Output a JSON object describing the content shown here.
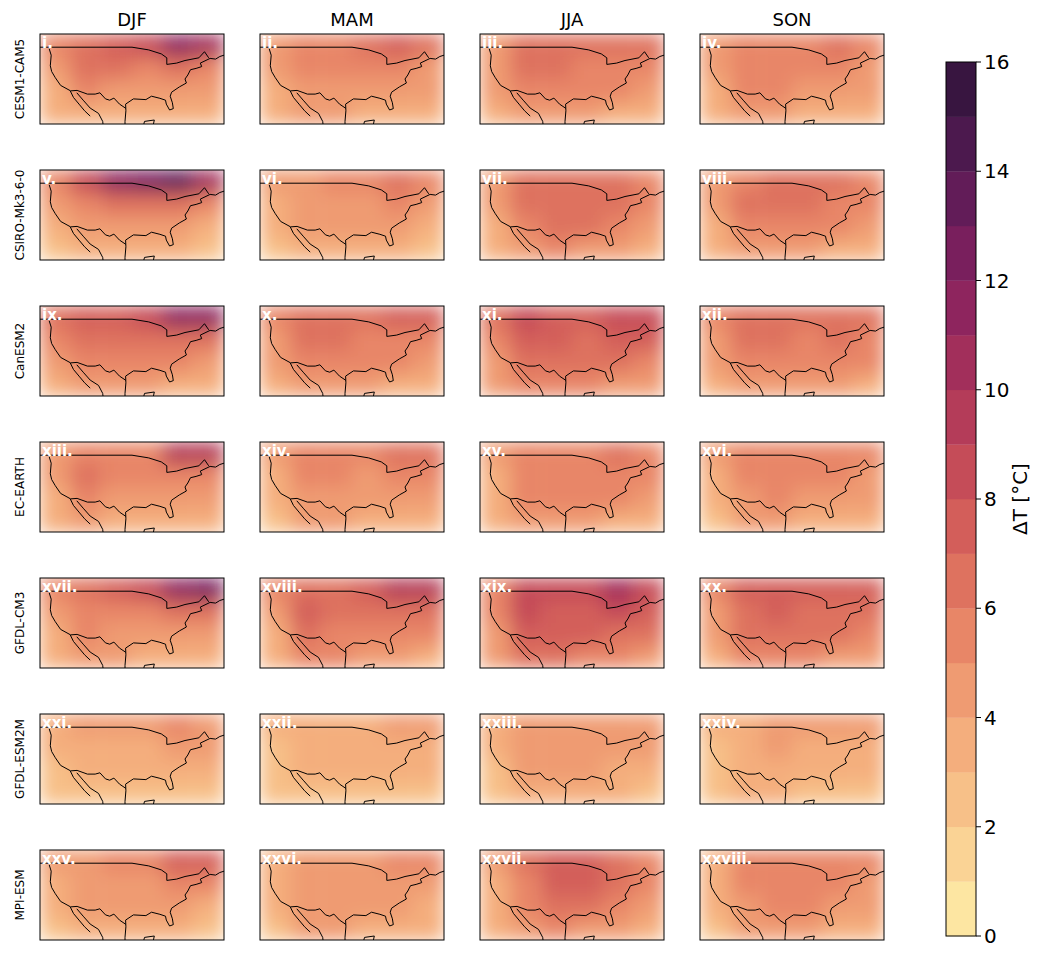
{
  "chart_data": {
    "type": "filled_contour_map_grid",
    "columns": [
      "DJF",
      "MAM",
      "JJA",
      "SON"
    ],
    "rows": [
      "CESM1-CAM5",
      "CSIRO-Mk3-6-0",
      "CanESM2",
      "EC-EARTH",
      "GFDL-CM3",
      "GFDL-ESM2M",
      "MPI-ESM"
    ],
    "panels": [
      {
        "label": "i.",
        "cells": [
          [
            5,
            6,
            7,
            8,
            11,
            10
          ],
          [
            4,
            6,
            6,
            5,
            6,
            5
          ],
          [
            3.5,
            5,
            4.5,
            4.5,
            4.5,
            4
          ],
          [
            3,
            3.5,
            3.5,
            3,
            3,
            3
          ]
        ]
      },
      {
        "label": "ii.",
        "cells": [
          [
            4,
            5,
            5,
            6,
            7,
            6
          ],
          [
            4,
            5,
            5,
            5,
            5,
            4.5
          ],
          [
            3.5,
            4.5,
            4.5,
            4.5,
            4.5,
            4
          ],
          [
            3,
            4,
            4,
            3.5,
            3,
            3
          ]
        ]
      },
      {
        "label": "iii.",
        "cells": [
          [
            4.5,
            6,
            6.5,
            6,
            6.5,
            6
          ],
          [
            4,
            6,
            6,
            5.5,
            5.5,
            5
          ],
          [
            4,
            5.5,
            5.5,
            5,
            5,
            4.5
          ],
          [
            3.5,
            4.5,
            4.5,
            4,
            3.5,
            3.5
          ]
        ]
      },
      {
        "label": "iv.",
        "cells": [
          [
            4.5,
            5.5,
            5.5,
            5.5,
            6,
            5.5
          ],
          [
            4,
            5,
            5,
            5,
            5,
            4.5
          ],
          [
            3.5,
            5,
            5,
            4.5,
            4.5,
            4
          ],
          [
            3,
            4,
            4,
            3.5,
            3.5,
            3
          ]
        ]
      },
      {
        "label": "v.",
        "cells": [
          [
            5,
            8,
            11,
            12,
            13,
            10
          ],
          [
            4,
            5,
            6,
            6,
            6,
            5
          ],
          [
            3,
            4,
            4,
            4,
            4,
            3.5
          ],
          [
            2.5,
            3,
            3,
            3,
            3,
            2.5
          ]
        ]
      },
      {
        "label": "vi.",
        "cells": [
          [
            4,
            4.5,
            5,
            5,
            6,
            5.5
          ],
          [
            3.5,
            4.5,
            4.5,
            4.5,
            5,
            4.5
          ],
          [
            3,
            4,
            4,
            4,
            4,
            3.5
          ],
          [
            2.5,
            3.5,
            3.5,
            3,
            3,
            2.5
          ]
        ]
      },
      {
        "label": "vii.",
        "cells": [
          [
            4.5,
            6.5,
            6.5,
            6.5,
            6,
            5.5
          ],
          [
            4,
            6.5,
            6.5,
            6.5,
            6,
            5
          ],
          [
            3.5,
            5.5,
            6,
            6,
            5.5,
            4.5
          ],
          [
            3,
            4.5,
            5,
            4.5,
            4,
            3.5
          ]
        ]
      },
      {
        "label": "viii.",
        "cells": [
          [
            4.5,
            5.5,
            6,
            6,
            6,
            5.5
          ],
          [
            4,
            6,
            6,
            6,
            5.5,
            5
          ],
          [
            3.5,
            5.5,
            5.5,
            5.5,
            5,
            4.5
          ],
          [
            3,
            4.5,
            4.5,
            4,
            3.5,
            3
          ]
        ]
      },
      {
        "label": "ix.",
        "cells": [
          [
            6,
            7,
            7.5,
            8,
            11,
            11
          ],
          [
            5,
            6.5,
            6,
            6,
            6,
            6
          ],
          [
            4,
            5.5,
            5,
            5,
            5,
            4.5
          ],
          [
            3.5,
            4.5,
            4.5,
            4,
            3.5,
            3.5
          ]
        ]
      },
      {
        "label": "x.",
        "cells": [
          [
            5,
            6,
            6,
            6,
            7,
            7
          ],
          [
            4.5,
            6,
            6,
            5.5,
            5.5,
            5.5
          ],
          [
            4,
            5.5,
            5,
            5,
            5,
            4.5
          ],
          [
            3.5,
            4.5,
            4.5,
            4,
            3.5,
            3.5
          ]
        ]
      },
      {
        "label": "xi.",
        "cells": [
          [
            6,
            8.5,
            7.5,
            7.5,
            8.5,
            8.5
          ],
          [
            5,
            7.5,
            7,
            6.5,
            7,
            7
          ],
          [
            4.5,
            6.5,
            6.5,
            6,
            6,
            5.5
          ],
          [
            4,
            5.5,
            5.5,
            5,
            4.5,
            4
          ]
        ]
      },
      {
        "label": "xii.",
        "cells": [
          [
            5.5,
            6.5,
            6,
            6,
            6.5,
            6.5
          ],
          [
            4.5,
            6,
            6,
            5.5,
            6,
            5.5
          ],
          [
            4,
            5.5,
            5.5,
            5,
            5,
            5
          ],
          [
            3.5,
            4.5,
            4.5,
            4,
            4,
            3.5
          ]
        ]
      },
      {
        "label": "xiii.",
        "cells": [
          [
            4.5,
            5,
            5,
            5.5,
            9,
            9
          ],
          [
            4,
            6.5,
            5,
            5,
            5,
            5
          ],
          [
            3.5,
            5,
            4.5,
            4.5,
            4.5,
            4
          ],
          [
            3,
            4,
            3.5,
            3.5,
            3,
            3
          ]
        ]
      },
      {
        "label": "xiv.",
        "cells": [
          [
            4,
            5,
            5,
            5,
            6,
            6
          ],
          [
            3.5,
            5.5,
            5,
            4.5,
            5,
            5
          ],
          [
            3,
            4.5,
            4.5,
            4.5,
            4.5,
            4
          ],
          [
            2.5,
            4,
            4,
            3.5,
            3,
            3
          ]
        ]
      },
      {
        "label": "xv.",
        "cells": [
          [
            4,
            5.5,
            5.5,
            5.5,
            6,
            5.5
          ],
          [
            3.5,
            5.5,
            5.5,
            5.5,
            5.5,
            5
          ],
          [
            3.5,
            5,
            5.5,
            5,
            5,
            4.5
          ],
          [
            3,
            4.5,
            4.5,
            4,
            3.5,
            3.5
          ]
        ]
      },
      {
        "label": "xvi.",
        "cells": [
          [
            4,
            5,
            5,
            5,
            5.5,
            5.5
          ],
          [
            3.5,
            5,
            5,
            5,
            5,
            4.5
          ],
          [
            3,
            4.5,
            5,
            4.5,
            4.5,
            4
          ],
          [
            2.5,
            4,
            4,
            3.5,
            3.5,
            3
          ]
        ]
      },
      {
        "label": "xvii.",
        "cells": [
          [
            5,
            6,
            7,
            8,
            11,
            12
          ],
          [
            4,
            5.5,
            5.5,
            5.5,
            6,
            6
          ],
          [
            3.5,
            5,
            4.5,
            4.5,
            4.5,
            4
          ],
          [
            3,
            4,
            4,
            3.5,
            3,
            3
          ]
        ]
      },
      {
        "label": "xviii.",
        "cells": [
          [
            5,
            6.5,
            6.5,
            7,
            9,
            9
          ],
          [
            4,
            7,
            6,
            6,
            6.5,
            6.5
          ],
          [
            3.5,
            6,
            5.5,
            5.5,
            5,
            5
          ],
          [
            3,
            5,
            5,
            4.5,
            4,
            3.5
          ]
        ]
      },
      {
        "label": "xix.",
        "cells": [
          [
            5.5,
            8,
            8,
            8.5,
            10,
            8
          ],
          [
            5,
            8,
            7.5,
            7.5,
            8,
            7
          ],
          [
            4.5,
            7,
            7,
            7,
            6.5,
            6
          ],
          [
            4,
            6,
            6,
            5.5,
            5,
            4.5
          ]
        ]
      },
      {
        "label": "xx.",
        "cells": [
          [
            5,
            7,
            7,
            7,
            7,
            7
          ],
          [
            4.5,
            6.5,
            7,
            6.5,
            6.5,
            6.5
          ],
          [
            4,
            6,
            6.5,
            6.5,
            6,
            5.5
          ],
          [
            3.5,
            5,
            5.5,
            5,
            4.5,
            4
          ]
        ]
      },
      {
        "label": "xxi.",
        "cells": [
          [
            3.5,
            4,
            4,
            4.5,
            5,
            4.5
          ],
          [
            3,
            3.5,
            3.5,
            3.5,
            4,
            4
          ],
          [
            2.5,
            3,
            3,
            3,
            3,
            3
          ],
          [
            2,
            2.5,
            2.5,
            2.5,
            2.5,
            2
          ]
        ]
      },
      {
        "label": "xxii.",
        "cells": [
          [
            3,
            3.5,
            3.5,
            3.5,
            4,
            4
          ],
          [
            2.5,
            3.5,
            3.5,
            3.5,
            3.5,
            3.5
          ],
          [
            2.5,
            3,
            3,
            3,
            3,
            3
          ],
          [
            2,
            2.5,
            2.5,
            2.5,
            2.5,
            2
          ]
        ]
      },
      {
        "label": "xxiii.",
        "cells": [
          [
            3,
            4,
            4,
            4.5,
            4,
            4
          ],
          [
            3,
            4.5,
            4.5,
            4.5,
            4,
            4
          ],
          [
            2.5,
            4,
            4,
            4,
            3.5,
            3.5
          ],
          [
            2.5,
            3.5,
            3.5,
            3,
            3,
            2.5
          ]
        ]
      },
      {
        "label": "xxiv.",
        "cells": [
          [
            3,
            3.5,
            4,
            4,
            4,
            4
          ],
          [
            2.5,
            3.5,
            4,
            3.5,
            3.5,
            3.5
          ],
          [
            2.5,
            3.5,
            3.5,
            3.5,
            3,
            3
          ],
          [
            2,
            3,
            3,
            2.5,
            2.5,
            2.5
          ]
        ]
      },
      {
        "label": "xxv.",
        "cells": [
          [
            4,
            4.5,
            5,
            5,
            7,
            7.5
          ],
          [
            3.5,
            4.5,
            4.5,
            4.5,
            5,
            5
          ],
          [
            3,
            4,
            4,
            4,
            4,
            3.5
          ],
          [
            2.5,
            3.5,
            3.5,
            3,
            3,
            2.5
          ]
        ]
      },
      {
        "label": "xxvi.",
        "cells": [
          [
            3.5,
            4.5,
            4.5,
            4.5,
            5,
            5
          ],
          [
            3,
            4.5,
            4.5,
            4.5,
            4.5,
            4.5
          ],
          [
            3,
            4.5,
            4.5,
            4,
            4,
            3.5
          ],
          [
            2.5,
            4,
            4,
            3.5,
            3,
            3
          ]
        ]
      },
      {
        "label": "xxvii.",
        "cells": [
          [
            4,
            6,
            7,
            7,
            6,
            5.5
          ],
          [
            3.5,
            5.5,
            7,
            7.5,
            6,
            5
          ],
          [
            3,
            5,
            6,
            6,
            5.5,
            4.5
          ],
          [
            3,
            4.5,
            5,
            4.5,
            4,
            3.5
          ]
        ]
      },
      {
        "label": "xxviii.",
        "cells": [
          [
            3.5,
            5,
            5.5,
            5.5,
            5.5,
            5
          ],
          [
            3,
            5,
            5.5,
            5.5,
            5,
            4.5
          ],
          [
            3,
            4.5,
            5,
            5,
            4.5,
            4
          ],
          [
            2.5,
            4,
            4,
            4,
            3.5,
            3
          ]
        ]
      }
    ],
    "colorbar": {
      "label": "ΔT [°C]",
      "lim": [
        0,
        16
      ],
      "ticks": [
        0,
        2,
        4,
        6,
        8,
        10,
        12,
        14,
        16
      ],
      "levels": [
        0,
        1,
        2,
        3,
        4,
        5,
        6,
        7,
        8,
        9,
        10,
        11,
        12,
        13,
        14,
        15,
        16
      ]
    }
  }
}
